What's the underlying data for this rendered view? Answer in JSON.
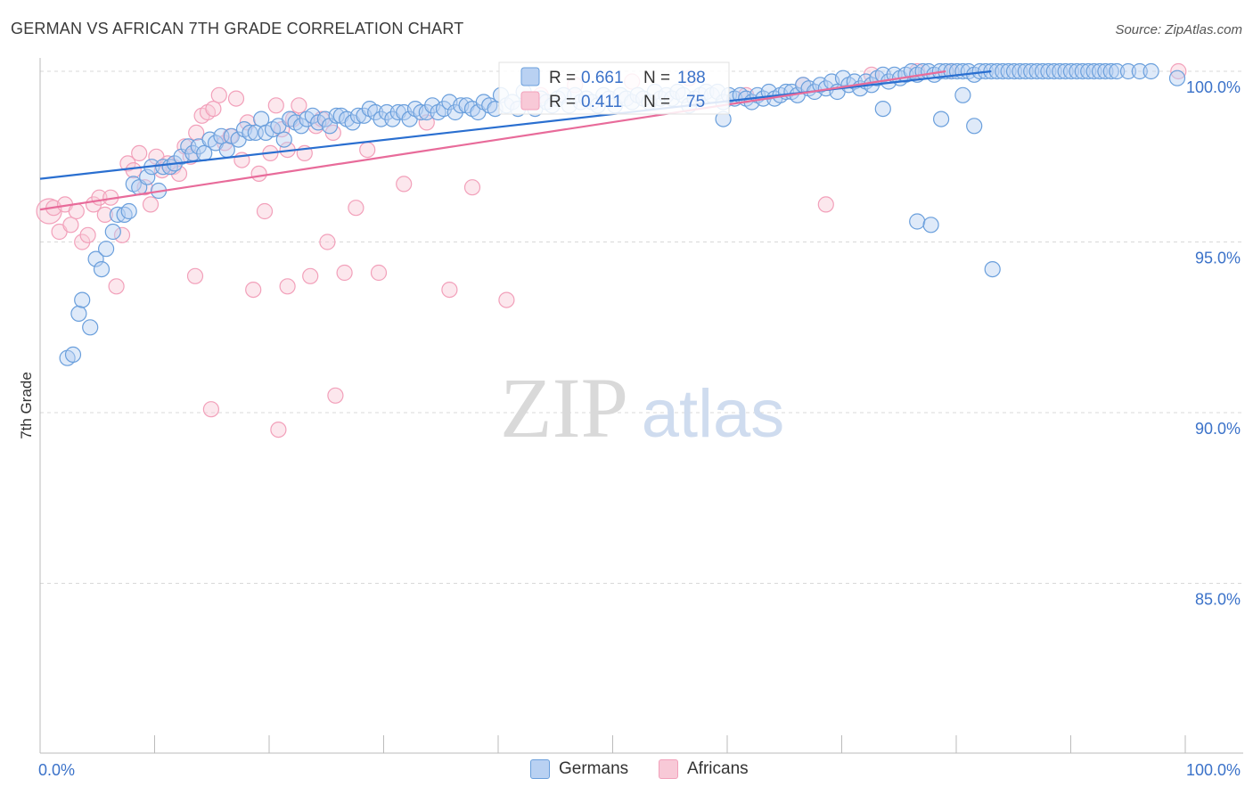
{
  "header": {
    "title": "GERMAN VS AFRICAN 7TH GRADE CORRELATION CHART",
    "source": "Source: ZipAtlas.com"
  },
  "watermark": {
    "zip": "ZIP",
    "atlas": "atlas"
  },
  "chart_data": {
    "type": "scatter",
    "title": "GERMAN VS AFRICAN 7TH GRADE CORRELATION CHART",
    "xlabel": "",
    "ylabel": "7th Grade",
    "xlim": [
      0,
      100
    ],
    "ylim": [
      80.5,
      100.3
    ],
    "x_tick_labels": [
      "0.0%",
      "100.0%"
    ],
    "y_ticks": [
      100,
      95,
      90,
      85
    ],
    "y_tick_labels": [
      "100.0%",
      "95.0%",
      "90.0%",
      "85.0%"
    ],
    "grid": true,
    "legend_position": "top-center",
    "colors": {
      "germans": "#6a9fdc",
      "africans": "#f2a0ba",
      "germans_line": "#2a6fd0",
      "africans_line": "#e86b9a",
      "tick_label": "#3b72c9"
    },
    "stats": [
      {
        "r_label": "R =",
        "r": "0.661",
        "n_label": "N =",
        "n": "188"
      },
      {
        "r_label": "R =",
        "r": "0.411",
        "n_label": "N =",
        "n": "75"
      }
    ],
    "series": [
      {
        "name": "Germans",
        "trend": {
          "x": [
            0,
            83
          ],
          "y": [
            96.85,
            100.0
          ]
        },
        "points": [
          [
            2,
            91.6
          ],
          [
            2.5,
            91.7
          ],
          [
            3,
            92.9
          ],
          [
            3.3,
            93.3
          ],
          [
            4,
            92.5
          ],
          [
            4.5,
            94.5
          ],
          [
            5,
            94.2
          ],
          [
            5.4,
            94.8
          ],
          [
            6,
            95.3
          ],
          [
            6.4,
            95.8
          ],
          [
            7,
            95.8
          ],
          [
            7.4,
            95.9
          ],
          [
            7.8,
            96.7
          ],
          [
            8.3,
            96.6
          ],
          [
            9,
            96.9
          ],
          [
            9.4,
            97.2
          ],
          [
            10,
            96.5
          ],
          [
            10.4,
            97.2
          ],
          [
            11,
            97.2
          ],
          [
            11.4,
            97.3
          ],
          [
            12,
            97.5
          ],
          [
            12.6,
            97.8
          ],
          [
            13,
            97.6
          ],
          [
            13.5,
            97.8
          ],
          [
            14,
            97.6
          ],
          [
            14.5,
            98.0
          ],
          [
            15,
            97.9
          ],
          [
            15.5,
            98.1
          ],
          [
            16,
            97.7
          ],
          [
            16.4,
            98.1
          ],
          [
            17,
            98.0
          ],
          [
            17.5,
            98.3
          ],
          [
            18,
            98.2
          ],
          [
            18.5,
            98.2
          ],
          [
            19,
            98.6
          ],
          [
            19.4,
            98.2
          ],
          [
            20,
            98.3
          ],
          [
            20.5,
            98.4
          ],
          [
            21,
            98.0
          ],
          [
            21.5,
            98.6
          ],
          [
            22,
            98.5
          ],
          [
            22.5,
            98.4
          ],
          [
            23,
            98.6
          ],
          [
            23.5,
            98.7
          ],
          [
            24,
            98.5
          ],
          [
            24.6,
            98.6
          ],
          [
            25,
            98.4
          ],
          [
            25.6,
            98.7
          ],
          [
            26,
            98.7
          ],
          [
            26.5,
            98.6
          ],
          [
            27,
            98.5
          ],
          [
            27.5,
            98.7
          ],
          [
            28,
            98.7
          ],
          [
            28.5,
            98.9
          ],
          [
            29,
            98.8
          ],
          [
            29.5,
            98.6
          ],
          [
            30,
            98.8
          ],
          [
            30.5,
            98.6
          ],
          [
            31,
            98.8
          ],
          [
            31.5,
            98.8
          ],
          [
            32,
            98.6
          ],
          [
            32.5,
            98.9
          ],
          [
            33,
            98.8
          ],
          [
            33.5,
            98.8
          ],
          [
            34,
            99.0
          ],
          [
            34.5,
            98.8
          ],
          [
            35,
            98.9
          ],
          [
            35.5,
            99.1
          ],
          [
            36,
            98.8
          ],
          [
            36.5,
            99.0
          ],
          [
            37,
            99.0
          ],
          [
            37.5,
            98.9
          ],
          [
            38,
            98.8
          ],
          [
            38.5,
            99.1
          ],
          [
            39,
            99.0
          ],
          [
            39.5,
            98.9
          ],
          [
            40,
            99.3
          ],
          [
            40.5,
            99.0
          ],
          [
            41,
            99.1
          ],
          [
            41.5,
            98.9
          ],
          [
            42,
            99.4
          ],
          [
            42.6,
            99.1
          ],
          [
            43,
            98.9
          ],
          [
            43.5,
            99.2
          ],
          [
            44,
            99.1
          ],
          [
            44.5,
            99.0
          ],
          [
            45,
            99.2
          ],
          [
            45.5,
            99.3
          ],
          [
            46,
            99.0
          ],
          [
            46.5,
            99.3
          ],
          [
            47,
            99.1
          ],
          [
            47.5,
            99.2
          ],
          [
            48,
            99.1
          ],
          [
            48.5,
            99.0
          ],
          [
            49,
            99.3
          ],
          [
            49.5,
            99.2
          ],
          [
            50,
            99.0
          ],
          [
            50.5,
            99.3
          ],
          [
            51,
            99.2
          ],
          [
            51.5,
            99.1
          ],
          [
            52,
            99.3
          ],
          [
            52.5,
            99.2
          ],
          [
            53,
            99.1
          ],
          [
            53.5,
            99.4
          ],
          [
            54,
            99.2
          ],
          [
            54.5,
            99.3
          ],
          [
            55,
            99.2
          ],
          [
            55.5,
            99.4
          ],
          [
            56,
            99.3
          ],
          [
            56.5,
            99.0
          ],
          [
            57,
            99.2
          ],
          [
            57.5,
            99.3
          ],
          [
            58,
            99.4
          ],
          [
            58.5,
            99.3
          ],
          [
            59,
            99.4
          ],
          [
            59.5,
            99.1
          ],
          [
            60,
            99.3
          ],
          [
            60.5,
            99.2
          ],
          [
            61,
            99.3
          ],
          [
            61.5,
            99.2
          ],
          [
            62,
            99.1
          ],
          [
            62.5,
            99.3
          ],
          [
            63,
            99.2
          ],
          [
            63.5,
            99.4
          ],
          [
            64,
            99.2
          ],
          [
            64.5,
            99.3
          ],
          [
            65,
            99.4
          ],
          [
            65.5,
            99.4
          ],
          [
            66,
            99.3
          ],
          [
            66.5,
            99.6
          ],
          [
            67,
            99.5
          ],
          [
            67.5,
            99.4
          ],
          [
            68,
            99.6
          ],
          [
            68.5,
            99.5
          ],
          [
            69,
            99.7
          ],
          [
            69.5,
            99.4
          ],
          [
            70,
            99.8
          ],
          [
            70.5,
            99.6
          ],
          [
            71,
            99.7
          ],
          [
            71.5,
            99.5
          ],
          [
            72,
            99.7
          ],
          [
            72.5,
            99.6
          ],
          [
            73,
            99.8
          ],
          [
            73.5,
            99.9
          ],
          [
            74,
            99.7
          ],
          [
            74.5,
            99.9
          ],
          [
            75,
            99.8
          ],
          [
            75.5,
            99.9
          ],
          [
            76,
            100
          ],
          [
            76.5,
            99.9
          ],
          [
            77,
            100
          ],
          [
            77.5,
            100
          ],
          [
            78,
            99.9
          ],
          [
            78.5,
            100
          ],
          [
            79,
            100
          ],
          [
            79.5,
            100
          ],
          [
            80,
            100
          ],
          [
            80.5,
            100
          ],
          [
            81,
            100
          ],
          [
            81.5,
            99.9
          ],
          [
            82,
            100
          ],
          [
            82.5,
            100
          ],
          [
            83,
            100
          ],
          [
            83.5,
            100
          ],
          [
            84,
            100
          ],
          [
            84.5,
            100
          ],
          [
            85,
            100
          ],
          [
            85.5,
            100
          ],
          [
            86,
            100
          ],
          [
            86.5,
            100
          ],
          [
            87,
            100
          ],
          [
            87.5,
            100
          ],
          [
            88,
            100
          ],
          [
            88.5,
            100
          ],
          [
            89,
            100
          ],
          [
            89.5,
            100
          ],
          [
            90,
            100
          ],
          [
            90.5,
            100
          ],
          [
            91,
            100
          ],
          [
            91.5,
            100
          ],
          [
            92,
            100
          ],
          [
            92.5,
            100
          ],
          [
            93,
            100
          ],
          [
            93.5,
            100
          ],
          [
            94,
            100
          ],
          [
            95,
            100
          ],
          [
            96,
            100
          ],
          [
            97,
            100
          ],
          [
            99.3,
            99.8
          ],
          [
            81.5,
            98.4
          ],
          [
            78.6,
            98.6
          ],
          [
            73.5,
            98.9
          ],
          [
            76.5,
            95.6
          ],
          [
            77.7,
            95.5
          ],
          [
            83.1,
            94.2
          ],
          [
            80.5,
            99.3
          ],
          [
            59.5,
            98.6
          ]
        ]
      },
      {
        "name": "Africans",
        "trend": {
          "x": [
            0,
            79
          ],
          "y": [
            95.95,
            100.0
          ]
        },
        "points": [
          [
            0.4,
            95.9
          ],
          [
            0.8,
            96.0
          ],
          [
            1.3,
            95.3
          ],
          [
            1.8,
            96.1
          ],
          [
            2.3,
            95.5
          ],
          [
            2.8,
            95.9
          ],
          [
            3.3,
            95.0
          ],
          [
            3.8,
            95.2
          ],
          [
            4.3,
            96.1
          ],
          [
            4.8,
            96.3
          ],
          [
            5.3,
            95.8
          ],
          [
            5.8,
            96.3
          ],
          [
            6.3,
            93.7
          ],
          [
            6.8,
            95.2
          ],
          [
            7.3,
            97.3
          ],
          [
            7.8,
            97.1
          ],
          [
            8.3,
            97.6
          ],
          [
            8.8,
            96.6
          ],
          [
            9.3,
            96.1
          ],
          [
            9.8,
            97.5
          ],
          [
            10.3,
            97.1
          ],
          [
            10.8,
            97.3
          ],
          [
            11.3,
            97.2
          ],
          [
            11.8,
            97.0
          ],
          [
            12.3,
            97.8
          ],
          [
            12.8,
            97.5
          ],
          [
            13.3,
            98.2
          ],
          [
            13.8,
            98.7
          ],
          [
            14.3,
            98.8
          ],
          [
            14.8,
            98.9
          ],
          [
            15.3,
            99.3
          ],
          [
            15.8,
            97.9
          ],
          [
            16.3,
            98.1
          ],
          [
            16.8,
            99.2
          ],
          [
            17.3,
            97.4
          ],
          [
            17.8,
            98.5
          ],
          [
            18.3,
            93.6
          ],
          [
            18.8,
            97.0
          ],
          [
            19.3,
            95.9
          ],
          [
            19.8,
            97.6
          ],
          [
            20.3,
            99.0
          ],
          [
            20.8,
            98.3
          ],
          [
            21.3,
            97.7
          ],
          [
            21.8,
            98.6
          ],
          [
            22.3,
            99.0
          ],
          [
            22.8,
            97.6
          ],
          [
            23.3,
            94.0
          ],
          [
            23.8,
            98.4
          ],
          [
            24.3,
            98.6
          ],
          [
            24.8,
            95.0
          ],
          [
            25.3,
            98.2
          ],
          [
            26.3,
            94.1
          ],
          [
            27.3,
            96.0
          ],
          [
            28.3,
            97.7
          ],
          [
            29.3,
            94.1
          ],
          [
            14.6,
            90.1
          ],
          [
            20.5,
            89.5
          ],
          [
            25.5,
            90.5
          ],
          [
            13.2,
            94.0
          ],
          [
            21.3,
            93.7
          ],
          [
            31.5,
            96.7
          ],
          [
            33.5,
            98.5
          ],
          [
            35.5,
            93.6
          ],
          [
            37.5,
            96.6
          ],
          [
            40.5,
            93.3
          ],
          [
            43.5,
            99.3
          ],
          [
            46.5,
            99.6
          ],
          [
            51.5,
            99.7
          ],
          [
            56.5,
            99.8
          ],
          [
            61.5,
            99.3
          ],
          [
            66.5,
            99.6
          ],
          [
            68.5,
            96.1
          ],
          [
            72.5,
            99.9
          ],
          [
            76.5,
            100
          ],
          [
            79.5,
            100
          ],
          [
            99.4,
            100
          ]
        ]
      }
    ]
  }
}
